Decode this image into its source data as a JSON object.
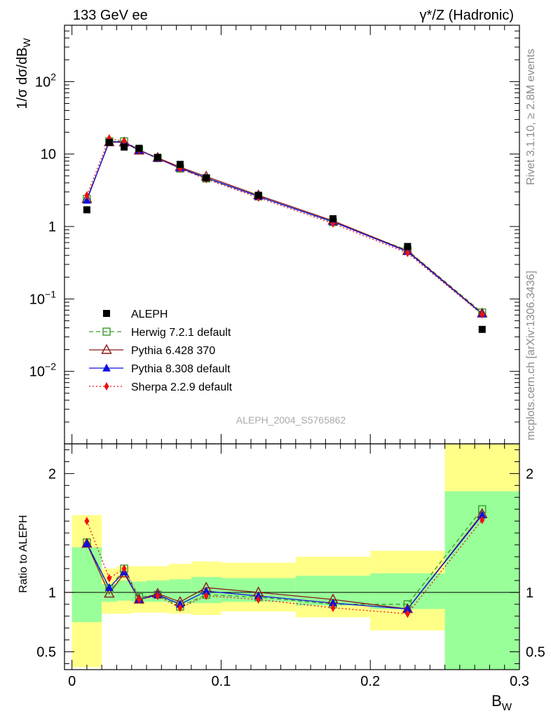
{
  "chart_data": {
    "type": "scatter",
    "title_left": "133 GeV ee",
    "title_right": "γ*/Z (Hadronic)",
    "analysis_id": "ALEPH_2004_S5765862",
    "side_label_top": "Rivet 3.1.10, ≥ 2.8M events",
    "side_label_bottom": "mcplots.cern.ch [arXiv:1306.3436]",
    "xlabel": "B_W",
    "ylabel_main": "1/σ dσ/dB_W",
    "ylabel_ratio": "Ratio to ALEPH",
    "xlim": [
      -0.005,
      0.3
    ],
    "main_ylim": [
      0.001,
      600
    ],
    "main_yscale": "log",
    "ratio_ylim": [
      0.35,
      2.25
    ],
    "x_ticks": [
      0,
      0.1,
      0.2,
      0.3
    ],
    "x_tick_labels": [
      "0",
      "0.1",
      "0.2",
      "0.3"
    ],
    "main_y_tick_labels": [
      "10^-2",
      "10^-1",
      "1",
      "10",
      "10^2"
    ],
    "ratio_y_ticks": [
      0.5,
      1,
      2
    ],
    "ratio_y_tick_labels": [
      "0.5",
      "1",
      "2"
    ],
    "bins": [
      [
        0,
        0.02
      ],
      [
        0.02,
        0.03
      ],
      [
        0.03,
        0.04
      ],
      [
        0.04,
        0.05
      ],
      [
        0.05,
        0.065
      ],
      [
        0.065,
        0.08
      ],
      [
        0.08,
        0.1
      ],
      [
        0.1,
        0.15
      ],
      [
        0.15,
        0.2
      ],
      [
        0.2,
        0.25
      ],
      [
        0.25,
        0.3
      ]
    ],
    "x": [
      0.01,
      0.025,
      0.035,
      0.045,
      0.0575,
      0.0725,
      0.09,
      0.125,
      0.175,
      0.225,
      0.275
    ],
    "data": {
      "name": "ALEPH",
      "values": [
        1.7,
        14.5,
        12.5,
        12.0,
        9.0,
        7.2,
        4.7,
        2.7,
        1.28,
        0.53,
        0.038
      ],
      "band_inner": [
        [
          0.75,
          1.38
        ],
        [
          0.92,
          1.07
        ],
        [
          0.93,
          1.1
        ],
        [
          0.92,
          1.09
        ],
        [
          0.92,
          1.1
        ],
        [
          0.91,
          1.11
        ],
        [
          0.91,
          1.13
        ],
        [
          0.92,
          1.12
        ],
        [
          0.89,
          1.14
        ],
        [
          0.86,
          1.16
        ],
        [
          0.35,
          1.85
        ]
      ],
      "band_outer": [
        [
          0.37,
          1.65
        ],
        [
          0.82,
          1.2
        ],
        [
          0.82,
          1.22
        ],
        [
          0.83,
          1.22
        ],
        [
          0.83,
          1.22
        ],
        [
          0.82,
          1.24
        ],
        [
          0.81,
          1.26
        ],
        [
          0.84,
          1.25
        ],
        [
          0.79,
          1.3
        ],
        [
          0.68,
          1.35
        ],
        [
          0.35,
          2.25
        ]
      ]
    },
    "series": [
      {
        "name": "Herwig 7.2.1 default",
        "color": "#3a9a2a",
        "marker": "open-square",
        "dash": "6,4",
        "values": [
          2.4,
          15.0,
          15.0,
          11.5,
          8.8,
          6.3,
          4.6,
          2.6,
          1.15,
          0.47,
          0.065
        ],
        "ratio": [
          1.42,
          1.03,
          1.2,
          0.96,
          0.98,
          0.88,
          0.98,
          0.96,
          0.9,
          0.9,
          1.7
        ]
      },
      {
        "name": "Pythia 6.428 370",
        "color": "#8b1a1a",
        "marker": "open-triangle",
        "dash": "",
        "values": [
          2.4,
          14.6,
          14.5,
          11.2,
          8.9,
          6.6,
          4.9,
          2.7,
          1.2,
          0.46,
          0.063
        ],
        "ratio": [
          1.41,
          0.99,
          1.16,
          0.94,
          0.99,
          0.92,
          1.04,
          1.0,
          0.94,
          0.86,
          1.66
        ]
      },
      {
        "name": "Pythia 8.308 default",
        "color": "#1010dd",
        "marker": "filled-triangle",
        "dash": "",
        "values": [
          2.3,
          15.0,
          14.6,
          11.3,
          8.7,
          6.4,
          4.7,
          2.6,
          1.16,
          0.45,
          0.062
        ],
        "ratio": [
          1.41,
          1.04,
          1.17,
          0.94,
          0.98,
          0.9,
          1.01,
          0.97,
          0.91,
          0.86,
          1.65
        ]
      },
      {
        "name": "Sherpa 2.2.9 default",
        "color": "#ee1111",
        "marker": "filled-diamond",
        "dash": "2,3",
        "values": [
          2.7,
          16.5,
          15.0,
          11.5,
          8.7,
          6.3,
          4.5,
          2.5,
          1.1,
          0.43,
          0.061
        ],
        "ratio": [
          1.6,
          1.12,
          1.2,
          0.94,
          0.97,
          0.87,
          0.97,
          0.94,
          0.87,
          0.82,
          1.61
        ]
      }
    ]
  }
}
